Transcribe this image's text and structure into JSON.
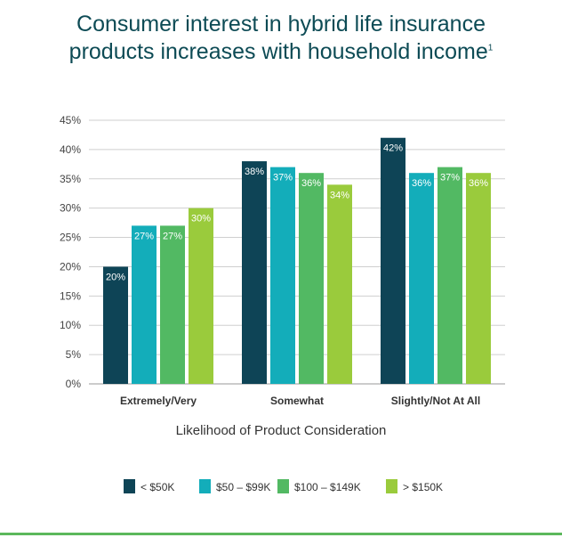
{
  "title": {
    "line1": "Consumer interest in hybrid life insurance",
    "line2": "products increases with household income",
    "footnote": "1"
  },
  "colors": {
    "title": "#0d4b55",
    "footer_rule": "#5cb85c"
  },
  "chart_data": {
    "type": "bar",
    "categories": [
      "Extremely/Very",
      "Somewhat",
      "Slightly/Not At All"
    ],
    "series": [
      {
        "name": "< $50K",
        "values": [
          20,
          38,
          42
        ],
        "color": "#0e4456"
      },
      {
        "name": "$50 – $99K",
        "values": [
          27,
          37,
          36
        ],
        "color": "#13adba"
      },
      {
        "name": "$100 – $149K",
        "values": [
          27,
          36,
          37
        ],
        "color": "#52b963"
      },
      {
        "name": "> $150K",
        "values": [
          30,
          34,
          36
        ],
        "color": "#9acb3c"
      }
    ],
    "data_labels": [
      [
        "20%",
        "38%",
        "42%"
      ],
      [
        "27%",
        "37%",
        "36%"
      ],
      [
        "27%",
        "36%",
        "37%"
      ],
      [
        "30%",
        "34%",
        "36%"
      ]
    ],
    "y_ticks": [
      0,
      5,
      10,
      15,
      20,
      25,
      30,
      35,
      40,
      45
    ],
    "y_tick_labels": [
      "0%",
      "5%",
      "10%",
      "15%",
      "20%",
      "25%",
      "30%",
      "35%",
      "40%",
      "45%"
    ],
    "ylim": [
      0,
      45
    ],
    "xlabel": "Likelihood of Product Consideration",
    "ylabel": "",
    "grid": true,
    "legend_position": "bottom"
  }
}
